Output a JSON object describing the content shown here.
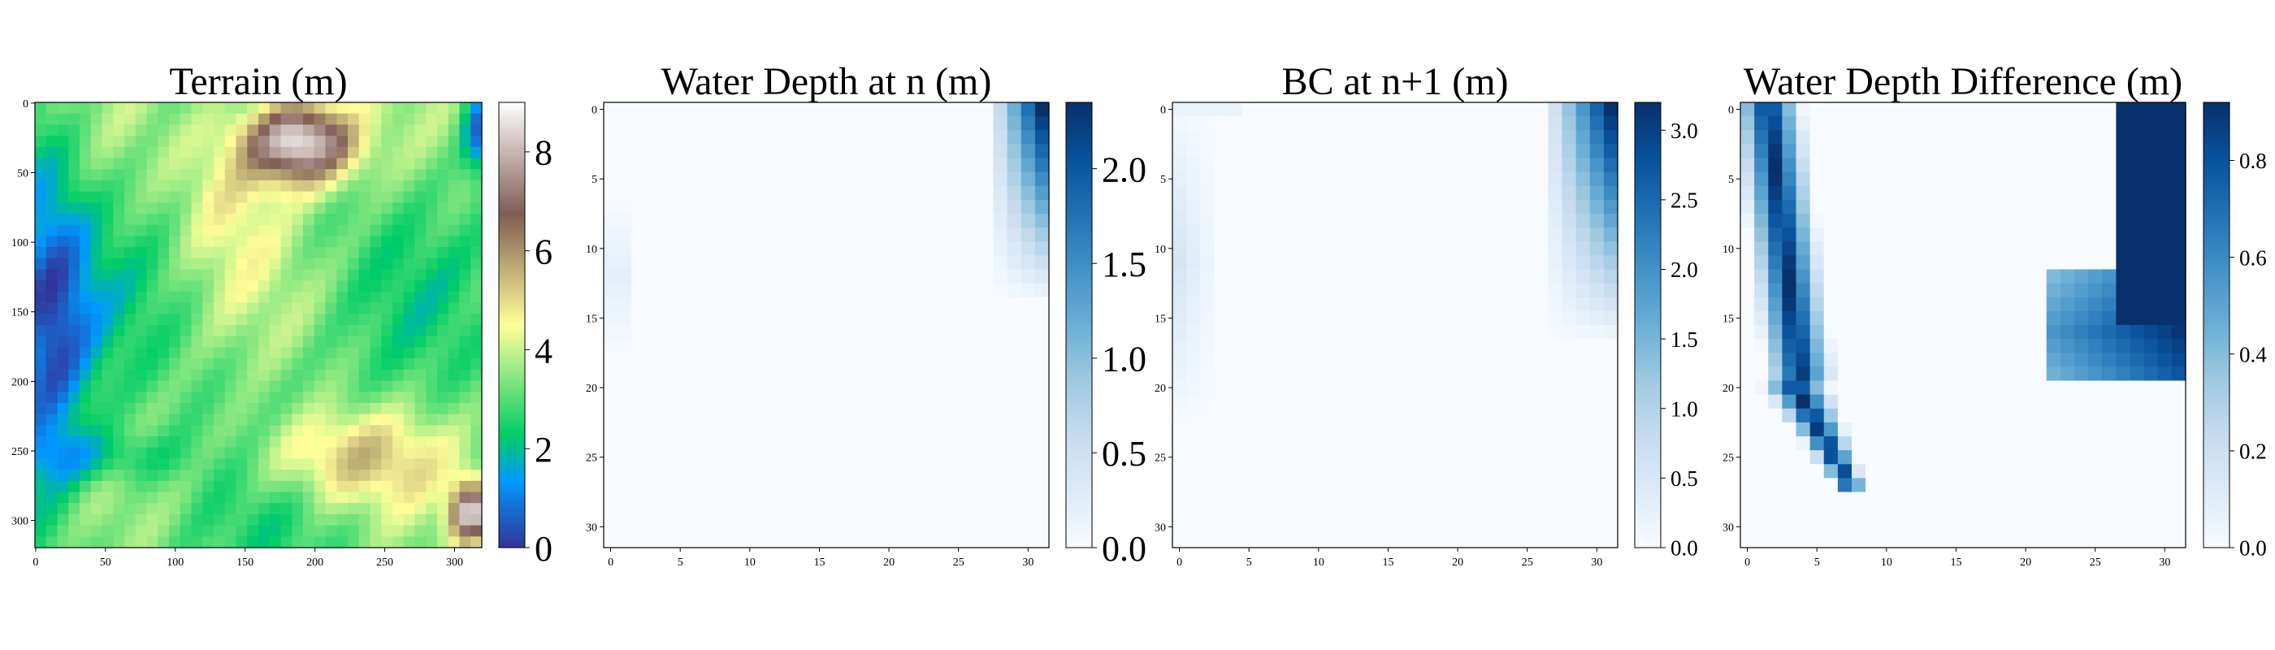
{
  "chart_data": [
    {
      "type": "heatmap",
      "title": "Terrain (m)",
      "colormap": "terrain",
      "grid_size": 320,
      "x_ticks": [
        0,
        50,
        100,
        150,
        200,
        250,
        300
      ],
      "y_ticks": [
        0,
        50,
        100,
        150,
        200,
        250,
        300
      ],
      "colorbar": {
        "min": 0,
        "max": 9,
        "ticks": [
          0,
          2,
          4,
          6,
          8
        ]
      },
      "features": [
        {
          "kind": "peak",
          "x": 190,
          "y": 30,
          "value": 9.0
        },
        {
          "kind": "peak",
          "x": 310,
          "y": 295,
          "value": 7.5
        },
        {
          "kind": "channel",
          "x": 10,
          "y": 150,
          "value": 0.5
        }
      ]
    },
    {
      "type": "heatmap",
      "title": "Water Depth at n (m)",
      "colormap": "Blues",
      "grid_size": 32,
      "x_ticks": [
        0,
        5,
        10,
        15,
        20,
        25,
        30
      ],
      "y_ticks": [
        0,
        5,
        10,
        15,
        20,
        25,
        30
      ],
      "colorbar": {
        "min": 0,
        "max": 2.35,
        "ticks": [
          0.0,
          0.5,
          1.0,
          1.5,
          2.0
        ]
      },
      "features": [
        {
          "kind": "flow-right",
          "x": 30,
          "y": 0,
          "value": 2.35
        },
        {
          "kind": "flow-left",
          "x": 0,
          "y": 12,
          "value": 0.2
        }
      ]
    },
    {
      "type": "heatmap",
      "title": "BC at n+1 (m)",
      "colormap": "Blues",
      "grid_size": 32,
      "x_ticks": [
        0,
        5,
        10,
        15,
        20,
        25,
        30
      ],
      "y_ticks": [
        0,
        5,
        10,
        15,
        20,
        25,
        30
      ],
      "colorbar": {
        "min": 0,
        "max": 3.2,
        "ticks": [
          0.0,
          0.5,
          1.0,
          1.5,
          2.0,
          2.5,
          3.0
        ]
      },
      "features": [
        {
          "kind": "flow-right",
          "x": 30,
          "y": 0,
          "value": 3.2
        },
        {
          "kind": "flow-left",
          "x": 0,
          "y": 12,
          "value": 0.5
        }
      ]
    },
    {
      "type": "heatmap",
      "title": "Water Depth Difference (m)",
      "colormap": "Blues",
      "grid_size": 32,
      "x_ticks": [
        0,
        5,
        10,
        15,
        20,
        25,
        30
      ],
      "y_ticks": [
        0,
        5,
        10,
        15,
        20,
        25,
        30
      ],
      "colorbar": {
        "min": 0,
        "max": 0.92,
        "ticks": [
          0.0,
          0.2,
          0.4,
          0.6,
          0.8
        ]
      },
      "features": [
        {
          "kind": "flow-right",
          "x": 30,
          "y": 8,
          "value": 0.92
        },
        {
          "kind": "flow-left",
          "x": 2,
          "y": 12,
          "value": 0.92
        }
      ]
    }
  ]
}
